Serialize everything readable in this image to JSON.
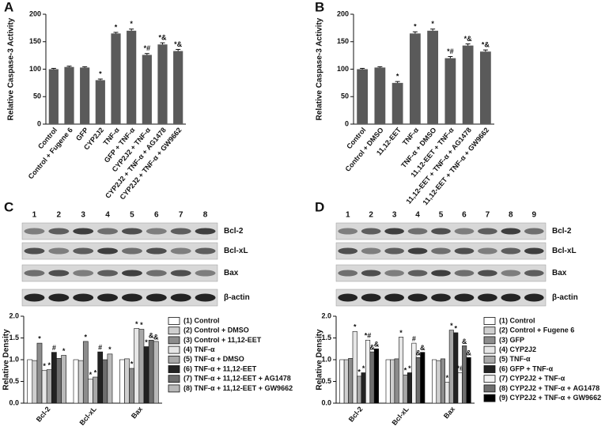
{
  "chart_data": [
    {
      "type": "bar",
      "panel": "A",
      "ylabel": "Relative Caspase-3 Activity",
      "color": "#5a5a5a",
      "categories": [
        "Control",
        "Control + Fugene 6",
        "GFP",
        "CYP2J2",
        "TNF-α",
        "GFP + TNF-α",
        "CYP2J2 + TNF-α",
        "CYP2J2 + TNF-α + AG1478",
        "CYP2J2 + TNF-α + GW9662"
      ],
      "values": [
        100,
        104,
        103,
        80,
        165,
        170,
        126,
        145,
        133
      ],
      "errors": [
        1.5,
        1.5,
        1.5,
        2,
        2,
        3,
        2.5,
        3,
        3
      ],
      "annotations": [
        null,
        null,
        null,
        "*",
        "*",
        "*",
        "*#",
        "*&",
        "*&"
      ],
      "ylim": [
        0,
        200
      ],
      "yticks": [
        0,
        50,
        100,
        150,
        200
      ]
    },
    {
      "type": "bar",
      "panel": "B",
      "ylabel": "Relative Caspase-3 Activity",
      "color": "#5a5a5a",
      "categories": [
        "Control",
        "Control + DMSO",
        "11,12-EET",
        "TNF-α",
        "TNF-α + DMSO",
        "11,12-EET + TNF-α",
        "11,12-EET + TNF-α + AG1478",
        "11,12-EET + TNF-α + GW9662"
      ],
      "values": [
        100,
        103,
        75,
        165,
        170,
        120,
        143,
        132
      ],
      "errors": [
        1.5,
        1.5,
        2.5,
        3,
        3,
        3,
        3,
        3
      ],
      "annotations": [
        null,
        null,
        "*",
        "*",
        "*",
        "*#",
        "*&",
        "*&"
      ],
      "ylim": [
        0,
        200
      ],
      "yticks": [
        0,
        50,
        100,
        150,
        200
      ]
    },
    {
      "type": "grouped_bar",
      "panel": "C",
      "ylabel": "Relative Density",
      "blot": {
        "lanes": [
          "1",
          "2",
          "3",
          "4",
          "5",
          "6",
          "7",
          "8"
        ],
        "rows": [
          "Bcl-2",
          "Bcl-xL",
          "Bax",
          "β-actin"
        ]
      },
      "categories": [
        "Bcl-2",
        "Bcl-xL",
        "Bax"
      ],
      "ylim": [
        0,
        2
      ],
      "yticks": [
        {
          "value": 0,
          "label": "0.0"
        },
        0.5,
        {
          "value": 1,
          "label": "1.0"
        },
        1.5,
        {
          "value": 2,
          "label": "2.0"
        }
      ],
      "series": [
        {
          "name": "(1) Control",
          "color": "#ffffff",
          "values": [
            1.0,
            1.0,
            1.0
          ],
          "annotations": [
            null,
            null,
            null
          ]
        },
        {
          "name": "(2) Control + DMSO",
          "color": "#cfcfcf",
          "values": [
            0.98,
            0.98,
            1.02
          ],
          "annotations": [
            null,
            null,
            null
          ]
        },
        {
          "name": "(3) Control + 11,12-EET",
          "color": "#8c8c8c",
          "values": [
            1.38,
            1.42,
            0.8
          ],
          "annotations": [
            "*",
            "*",
            "*"
          ]
        },
        {
          "name": "(4) TNF-α",
          "color": "#e6e6e6",
          "values": [
            0.75,
            0.55,
            1.72
          ],
          "annotations": [
            "*",
            "*",
            "*"
          ]
        },
        {
          "name": "(5) TNF-α + DMSO",
          "color": "#a8a8a8",
          "values": [
            0.77,
            0.6,
            1.7
          ],
          "annotations": [
            "*",
            "*",
            "*"
          ]
        },
        {
          "name": "(6) TNF-α + 11,12-EET",
          "color": "#222222",
          "values": [
            1.17,
            1.18,
            1.3
          ],
          "annotations": [
            "#",
            "#",
            "*"
          ]
        },
        {
          "name": "(7) TNF-α + 11,12-EET + AG1478",
          "color": "#6e6e6e",
          "values": [
            1.03,
            1.0,
            1.45
          ],
          "annotations": [
            null,
            null,
            "&"
          ]
        },
        {
          "name": "(8) TNF-α + 11,12-EET + GW9662",
          "color": "#b9b9b9",
          "values": [
            1.1,
            1.13,
            1.42
          ],
          "annotations": [
            "*",
            "*",
            "&"
          ]
        }
      ]
    },
    {
      "type": "grouped_bar",
      "panel": "D",
      "ylabel": "Relative Density",
      "blot": {
        "lanes": [
          "1",
          "2",
          "3",
          "4",
          "5",
          "6",
          "7",
          "8",
          "9"
        ],
        "rows": [
          "Bcl-2",
          "Bcl-xL",
          "Bax",
          "β-actin"
        ]
      },
      "categories": [
        "Bcl-2",
        "Bcl-xL",
        "Bax"
      ],
      "ylim": [
        0,
        2
      ],
      "yticks": [
        {
          "value": 0,
          "label": "0.0"
        },
        0.5,
        {
          "value": 1,
          "label": "1.0"
        },
        1.5,
        {
          "value": 2,
          "label": "2.0"
        }
      ],
      "series": [
        {
          "name": "(1) Control",
          "color": "#ffffff",
          "values": [
            1.0,
            1.0,
            1.0
          ],
          "annotations": [
            null,
            null,
            null
          ]
        },
        {
          "name": "(2) Control + Fugene 6",
          "color": "#cfcfcf",
          "values": [
            1.0,
            1.0,
            0.98
          ],
          "annotations": [
            null,
            null,
            null
          ]
        },
        {
          "name": "(3) GFP",
          "color": "#8c8c8c",
          "values": [
            1.03,
            1.02,
            1.02
          ],
          "annotations": [
            null,
            null,
            null
          ]
        },
        {
          "name": "(4) CYP2J2",
          "color": "#e6e6e6",
          "values": [
            1.65,
            1.52,
            0.48
          ],
          "annotations": [
            "*",
            "*",
            "*"
          ]
        },
        {
          "name": "(5) TNF-α",
          "color": "#a8a8a8",
          "values": [
            0.62,
            0.65,
            1.68
          ],
          "annotations": [
            "*",
            "*",
            "*"
          ]
        },
        {
          "name": "(6) GFP + TNF-α",
          "color": "#222222",
          "values": [
            0.7,
            0.7,
            1.62
          ],
          "annotations": [
            "*",
            "*",
            "*"
          ]
        },
        {
          "name": "(7) CYP2J2 + TNF-α",
          "color": "#f2f2f2",
          "values": [
            1.45,
            1.38,
            0.7
          ],
          "annotations": [
            "*#",
            "#",
            "*#"
          ]
        },
        {
          "name": "(8) CYP2J2 + TNF-α + AG1478",
          "color": "#6e6e6e",
          "values": [
            1.18,
            1.05,
            1.32
          ],
          "annotations": [
            "&",
            "&",
            "&"
          ]
        },
        {
          "name": "(9) CYP2J2 + TNF-α + GW9662",
          "color": "#000000",
          "values": [
            1.25,
            1.17,
            1.05
          ],
          "annotations": [
            "&",
            "&",
            "&"
          ]
        }
      ]
    }
  ]
}
